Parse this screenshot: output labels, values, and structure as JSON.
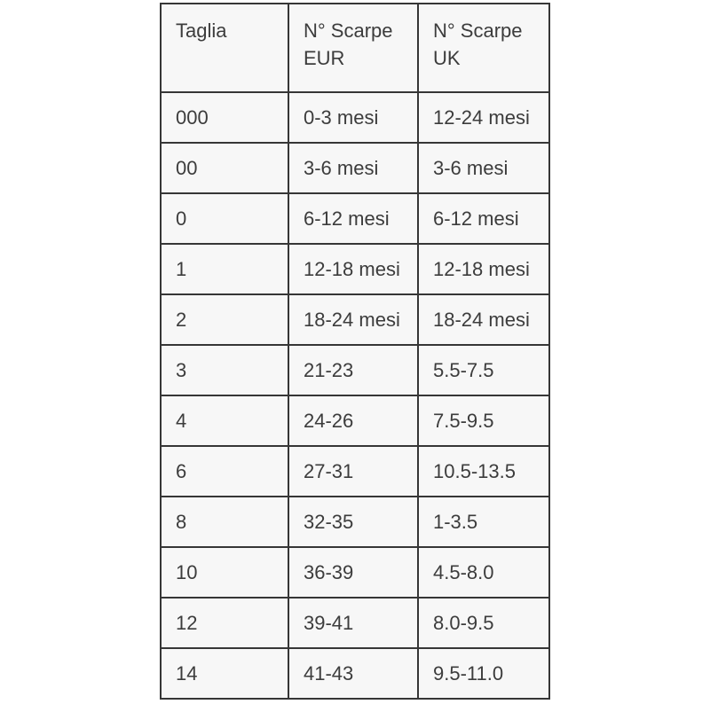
{
  "page": {
    "background": "#ffffff"
  },
  "table": {
    "columns": [
      "Taglia",
      "N° Scarpe EUR",
      "N° Scarpe UK"
    ],
    "rows": [
      [
        "000",
        "0-3 mesi",
        "12-24 mesi"
      ],
      [
        "00",
        "3-6 mesi",
        "3-6 mesi"
      ],
      [
        "0",
        "6-12 mesi",
        "6-12 mesi"
      ],
      [
        "1",
        "12-18 mesi",
        "12-18 mesi"
      ],
      [
        "2",
        "18-24 mesi",
        "18-24 mesi"
      ],
      [
        "3",
        "21-23",
        "5.5-7.5"
      ],
      [
        "4",
        "24-26",
        "7.5-9.5"
      ],
      [
        "6",
        "27-31",
        "10.5-13.5"
      ],
      [
        "8",
        "32-35",
        "1-3.5"
      ],
      [
        "10",
        "36-39",
        "4.5-8.0"
      ],
      [
        "12",
        "39-41",
        "8.0-9.5"
      ],
      [
        "14",
        "41-43",
        "9.5-11.0"
      ]
    ],
    "colors": {
      "cell_background": "#f7f7f7",
      "border": "#363636",
      "text": "#3c3c3c"
    }
  }
}
